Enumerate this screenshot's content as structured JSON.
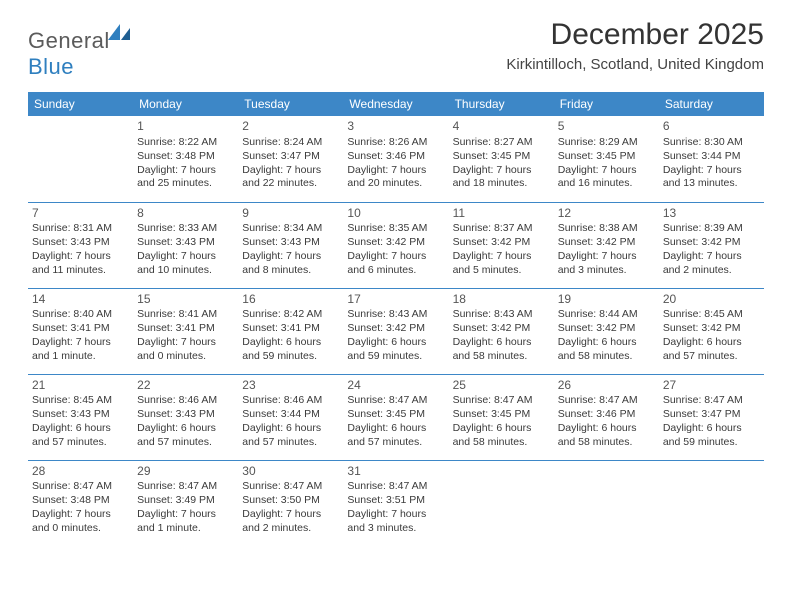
{
  "logo": {
    "text_general": "General",
    "text_blue": "Blue"
  },
  "title": "December 2025",
  "location": "Kirkintilloch, Scotland, United Kingdom",
  "colors": {
    "header_bg": "#3d87c7",
    "header_text": "#ffffff",
    "page_bg": "#ffffff",
    "text": "#3a3a3a",
    "rule": "#3d87c7",
    "logo_gray": "#5b5b5b",
    "logo_blue": "#2f7fbf"
  },
  "day_headers": [
    "Sunday",
    "Monday",
    "Tuesday",
    "Wednesday",
    "Thursday",
    "Friday",
    "Saturday"
  ],
  "weeks": [
    [
      null,
      {
        "n": "1",
        "sunrise": "8:22 AM",
        "sunset": "3:48 PM",
        "daylight": "7 hours and 25 minutes."
      },
      {
        "n": "2",
        "sunrise": "8:24 AM",
        "sunset": "3:47 PM",
        "daylight": "7 hours and 22 minutes."
      },
      {
        "n": "3",
        "sunrise": "8:26 AM",
        "sunset": "3:46 PM",
        "daylight": "7 hours and 20 minutes."
      },
      {
        "n": "4",
        "sunrise": "8:27 AM",
        "sunset": "3:45 PM",
        "daylight": "7 hours and 18 minutes."
      },
      {
        "n": "5",
        "sunrise": "8:29 AM",
        "sunset": "3:45 PM",
        "daylight": "7 hours and 16 minutes."
      },
      {
        "n": "6",
        "sunrise": "8:30 AM",
        "sunset": "3:44 PM",
        "daylight": "7 hours and 13 minutes."
      }
    ],
    [
      {
        "n": "7",
        "sunrise": "8:31 AM",
        "sunset": "3:43 PM",
        "daylight": "7 hours and 11 minutes."
      },
      {
        "n": "8",
        "sunrise": "8:33 AM",
        "sunset": "3:43 PM",
        "daylight": "7 hours and 10 minutes."
      },
      {
        "n": "9",
        "sunrise": "8:34 AM",
        "sunset": "3:43 PM",
        "daylight": "7 hours and 8 minutes."
      },
      {
        "n": "10",
        "sunrise": "8:35 AM",
        "sunset": "3:42 PM",
        "daylight": "7 hours and 6 minutes."
      },
      {
        "n": "11",
        "sunrise": "8:37 AM",
        "sunset": "3:42 PM",
        "daylight": "7 hours and 5 minutes."
      },
      {
        "n": "12",
        "sunrise": "8:38 AM",
        "sunset": "3:42 PM",
        "daylight": "7 hours and 3 minutes."
      },
      {
        "n": "13",
        "sunrise": "8:39 AM",
        "sunset": "3:42 PM",
        "daylight": "7 hours and 2 minutes."
      }
    ],
    [
      {
        "n": "14",
        "sunrise": "8:40 AM",
        "sunset": "3:41 PM",
        "daylight": "7 hours and 1 minute."
      },
      {
        "n": "15",
        "sunrise": "8:41 AM",
        "sunset": "3:41 PM",
        "daylight": "7 hours and 0 minutes."
      },
      {
        "n": "16",
        "sunrise": "8:42 AM",
        "sunset": "3:41 PM",
        "daylight": "6 hours and 59 minutes."
      },
      {
        "n": "17",
        "sunrise": "8:43 AM",
        "sunset": "3:42 PM",
        "daylight": "6 hours and 59 minutes."
      },
      {
        "n": "18",
        "sunrise": "8:43 AM",
        "sunset": "3:42 PM",
        "daylight": "6 hours and 58 minutes."
      },
      {
        "n": "19",
        "sunrise": "8:44 AM",
        "sunset": "3:42 PM",
        "daylight": "6 hours and 58 minutes."
      },
      {
        "n": "20",
        "sunrise": "8:45 AM",
        "sunset": "3:42 PM",
        "daylight": "6 hours and 57 minutes."
      }
    ],
    [
      {
        "n": "21",
        "sunrise": "8:45 AM",
        "sunset": "3:43 PM",
        "daylight": "6 hours and 57 minutes."
      },
      {
        "n": "22",
        "sunrise": "8:46 AM",
        "sunset": "3:43 PM",
        "daylight": "6 hours and 57 minutes."
      },
      {
        "n": "23",
        "sunrise": "8:46 AM",
        "sunset": "3:44 PM",
        "daylight": "6 hours and 57 minutes."
      },
      {
        "n": "24",
        "sunrise": "8:47 AM",
        "sunset": "3:45 PM",
        "daylight": "6 hours and 57 minutes."
      },
      {
        "n": "25",
        "sunrise": "8:47 AM",
        "sunset": "3:45 PM",
        "daylight": "6 hours and 58 minutes."
      },
      {
        "n": "26",
        "sunrise": "8:47 AM",
        "sunset": "3:46 PM",
        "daylight": "6 hours and 58 minutes."
      },
      {
        "n": "27",
        "sunrise": "8:47 AM",
        "sunset": "3:47 PM",
        "daylight": "6 hours and 59 minutes."
      }
    ],
    [
      {
        "n": "28",
        "sunrise": "8:47 AM",
        "sunset": "3:48 PM",
        "daylight": "7 hours and 0 minutes."
      },
      {
        "n": "29",
        "sunrise": "8:47 AM",
        "sunset": "3:49 PM",
        "daylight": "7 hours and 1 minute."
      },
      {
        "n": "30",
        "sunrise": "8:47 AM",
        "sunset": "3:50 PM",
        "daylight": "7 hours and 2 minutes."
      },
      {
        "n": "31",
        "sunrise": "8:47 AM",
        "sunset": "3:51 PM",
        "daylight": "7 hours and 3 minutes."
      },
      null,
      null,
      null
    ]
  ],
  "labels": {
    "sunrise": "Sunrise: ",
    "sunset": "Sunset: ",
    "daylight": "Daylight: "
  }
}
